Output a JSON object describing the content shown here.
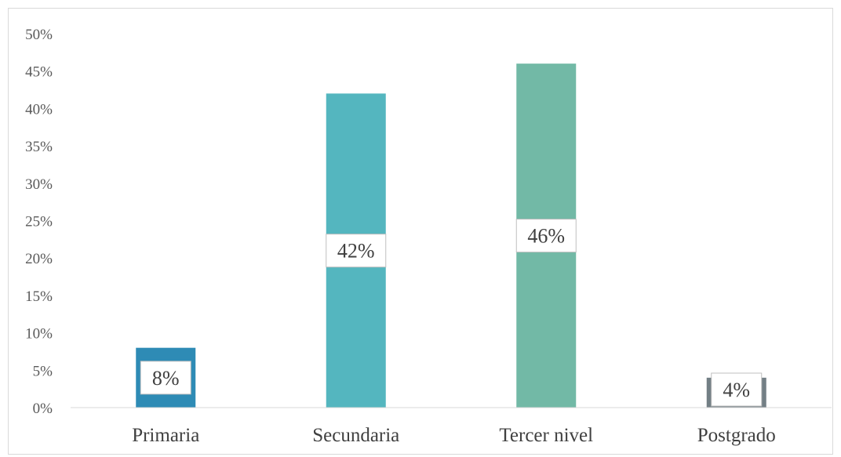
{
  "chart_data": {
    "type": "bar",
    "title": "",
    "xlabel": "",
    "ylabel": "",
    "categories": [
      "Primaria",
      "Secundaria",
      "Tercer nivel",
      "Postgrado"
    ],
    "values": [
      8,
      42,
      46,
      4
    ],
    "value_labels": [
      "8%",
      "42%",
      "46%",
      "4%"
    ],
    "ylim": [
      0,
      50
    ],
    "yticks": [
      0,
      5,
      10,
      15,
      20,
      25,
      30,
      35,
      40,
      45,
      50
    ],
    "ytick_labels": [
      "0%",
      "5%",
      "10%",
      "15%",
      "20%",
      "25%",
      "30%",
      "35%",
      "40%",
      "45%",
      "50%"
    ],
    "colors": [
      "#2e8bb5",
      "#54b6bf",
      "#72b9a6",
      "#737f85"
    ],
    "grid": false,
    "legend": "none"
  }
}
